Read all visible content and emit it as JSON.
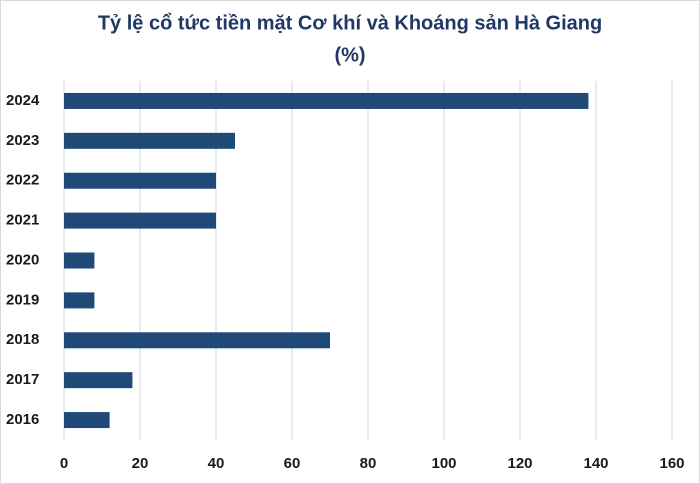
{
  "chart_data": {
    "type": "barh",
    "title": "Tỷ lệ cổ tức tiền mặt Cơ khí và Khoáng sản Hà Giang",
    "subtitle": "(%)",
    "categories": [
      "2024",
      "2023",
      "2022",
      "2021",
      "2020",
      "2019",
      "2018",
      "2017",
      "2016"
    ],
    "values": [
      138,
      45,
      40,
      40,
      8,
      8,
      70,
      18,
      12
    ],
    "color": "#1f4a78",
    "xlim": [
      0,
      160
    ],
    "xticks": [
      0,
      20,
      40,
      60,
      80,
      100,
      120,
      140,
      160
    ],
    "grid": true
  }
}
